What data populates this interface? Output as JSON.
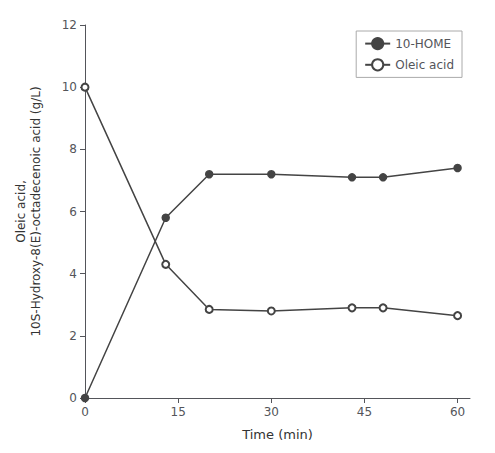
{
  "chart_data": {
    "type": "line",
    "x": [
      0,
      13,
      20,
      30,
      43,
      48,
      60
    ],
    "series": [
      {
        "name": "10-HOME",
        "color": "#444444",
        "marker": "filled_circle",
        "values": [
          0,
          5.8,
          7.2,
          7.2,
          7.1,
          7.1,
          7.4
        ]
      },
      {
        "name": "Oleic acid",
        "color": "#444444",
        "marker": "open_circle",
        "values": [
          10,
          4.3,
          2.85,
          2.8,
          2.9,
          2.9,
          2.65
        ]
      }
    ],
    "xlabel": "Time (min)",
    "ylabel": "Oleic acid,\n10S-Hydroxy-8(E)-octadecenoic acid (g/L)",
    "xlim": [
      0,
      62
    ],
    "ylim": [
      0,
      12
    ],
    "xticks": [
      0,
      15,
      30,
      45,
      60
    ],
    "yticks": [
      0,
      2,
      4,
      6,
      8,
      10,
      12
    ],
    "grid": false,
    "legend": "upper right"
  }
}
